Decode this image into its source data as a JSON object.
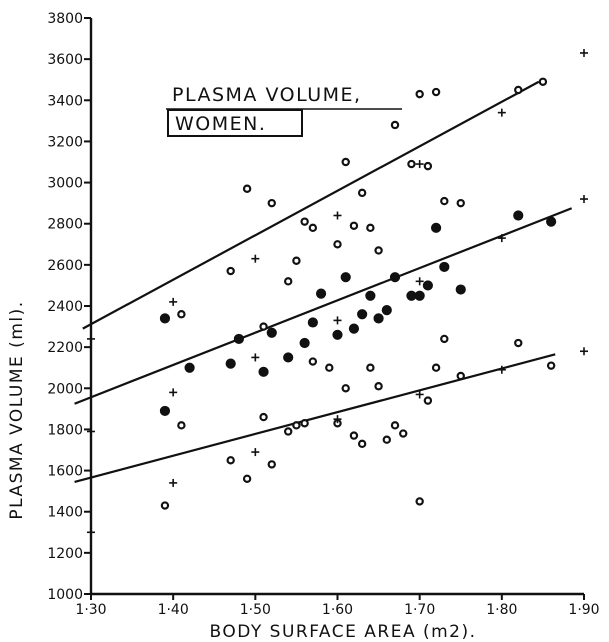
{
  "chart_data": {
    "type": "scatter",
    "title": "PLASMA VOLUME,",
    "subtitle": "WOMEN.",
    "xlabel": "BODY SURFACE AREA (m2).",
    "ylabel": "PLASMA VOLUME (ml).",
    "xlim": [
      1.3,
      1.9
    ],
    "ylim": [
      1000,
      3800
    ],
    "x_ticks": [
      "1·30",
      "1·40",
      "1·50",
      "1·60",
      "1·70",
      "1·80",
      "1·90"
    ],
    "x_tick_values": [
      1.3,
      1.4,
      1.5,
      1.6,
      1.7,
      1.8,
      1.9
    ],
    "y_ticks": [
      "1000",
      "1200",
      "1400",
      "1600",
      "1800",
      "2000",
      "2200",
      "2400",
      "2600",
      "2800",
      "3000",
      "3200",
      "3400",
      "3600",
      "3800"
    ],
    "y_tick_values": [
      1000,
      1200,
      1400,
      1600,
      1800,
      2000,
      2200,
      2400,
      2600,
      2800,
      3000,
      3200,
      3400,
      3600,
      3800
    ],
    "lines": [
      {
        "x": [
          1.29,
          1.845
        ],
        "y": [
          2290,
          3490
        ]
      },
      {
        "x": [
          1.28,
          1.885
        ],
        "y": [
          1925,
          2875
        ]
      },
      {
        "x": [
          1.28,
          1.865
        ],
        "y": [
          1545,
          2165
        ]
      }
    ],
    "series": [
      {
        "marker": "open-circle",
        "points": [
          [
            1.39,
            1430
          ],
          [
            1.41,
            2360
          ],
          [
            1.41,
            1820
          ],
          [
            1.47,
            1650
          ],
          [
            1.47,
            2570
          ],
          [
            1.49,
            2970
          ],
          [
            1.49,
            1560
          ],
          [
            1.51,
            2300
          ],
          [
            1.51,
            1860
          ],
          [
            1.52,
            2900
          ],
          [
            1.52,
            1630
          ],
          [
            1.54,
            2520
          ],
          [
            1.54,
            1790
          ],
          [
            1.55,
            2620
          ],
          [
            1.55,
            1820
          ],
          [
            1.56,
            2810
          ],
          [
            1.56,
            1830
          ],
          [
            1.57,
            2780
          ],
          [
            1.57,
            2130
          ],
          [
            1.59,
            2100
          ],
          [
            1.6,
            2700
          ],
          [
            1.6,
            1830
          ],
          [
            1.61,
            3100
          ],
          [
            1.61,
            2000
          ],
          [
            1.62,
            2790
          ],
          [
            1.62,
            1770
          ],
          [
            1.63,
            2950
          ],
          [
            1.63,
            1730
          ],
          [
            1.64,
            2780
          ],
          [
            1.64,
            2100
          ],
          [
            1.65,
            2670
          ],
          [
            1.65,
            2010
          ],
          [
            1.66,
            1750
          ],
          [
            1.67,
            3280
          ],
          [
            1.67,
            1820
          ],
          [
            1.68,
            1780
          ],
          [
            1.69,
            3090
          ],
          [
            1.7,
            3430
          ],
          [
            1.7,
            1450
          ],
          [
            1.71,
            3080
          ],
          [
            1.71,
            1940
          ],
          [
            1.72,
            3440
          ],
          [
            1.72,
            2100
          ],
          [
            1.73,
            2910
          ],
          [
            1.73,
            2240
          ],
          [
            1.75,
            2900
          ],
          [
            1.75,
            2060
          ],
          [
            1.82,
            3450
          ],
          [
            1.82,
            2220
          ],
          [
            1.85,
            3490
          ],
          [
            1.86,
            2110
          ]
        ]
      },
      {
        "marker": "filled-circle",
        "points": [
          [
            1.39,
            2340
          ],
          [
            1.39,
            1890
          ],
          [
            1.42,
            2100
          ],
          [
            1.47,
            2120
          ],
          [
            1.48,
            2240
          ],
          [
            1.51,
            2080
          ],
          [
            1.52,
            2270
          ],
          [
            1.54,
            2150
          ],
          [
            1.56,
            2220
          ],
          [
            1.57,
            2320
          ],
          [
            1.58,
            2460
          ],
          [
            1.6,
            2260
          ],
          [
            1.61,
            2540
          ],
          [
            1.62,
            2290
          ],
          [
            1.63,
            2360
          ],
          [
            1.64,
            2450
          ],
          [
            1.65,
            2340
          ],
          [
            1.66,
            2380
          ],
          [
            1.67,
            2540
          ],
          [
            1.69,
            2450
          ],
          [
            1.7,
            2450
          ],
          [
            1.71,
            2500
          ],
          [
            1.72,
            2780
          ],
          [
            1.73,
            2590
          ],
          [
            1.75,
            2480
          ],
          [
            1.82,
            2840
          ],
          [
            1.86,
            2810
          ]
        ]
      },
      {
        "marker": "plus",
        "points": [
          [
            1.3,
            2240
          ],
          [
            1.3,
            1790
          ],
          [
            1.3,
            1300
          ],
          [
            1.4,
            2420
          ],
          [
            1.4,
            1980
          ],
          [
            1.4,
            1540
          ],
          [
            1.5,
            2630
          ],
          [
            1.5,
            2150
          ],
          [
            1.5,
            1690
          ],
          [
            1.6,
            2840
          ],
          [
            1.6,
            2330
          ],
          [
            1.6,
            1850
          ],
          [
            1.7,
            3090
          ],
          [
            1.7,
            2520
          ],
          [
            1.7,
            1970
          ],
          [
            1.8,
            3340
          ],
          [
            1.8,
            2730
          ],
          [
            1.8,
            2090
          ],
          [
            1.9,
            3630
          ],
          [
            1.9,
            2920
          ],
          [
            1.9,
            2180
          ]
        ]
      }
    ],
    "grid": false,
    "legend": "none"
  }
}
